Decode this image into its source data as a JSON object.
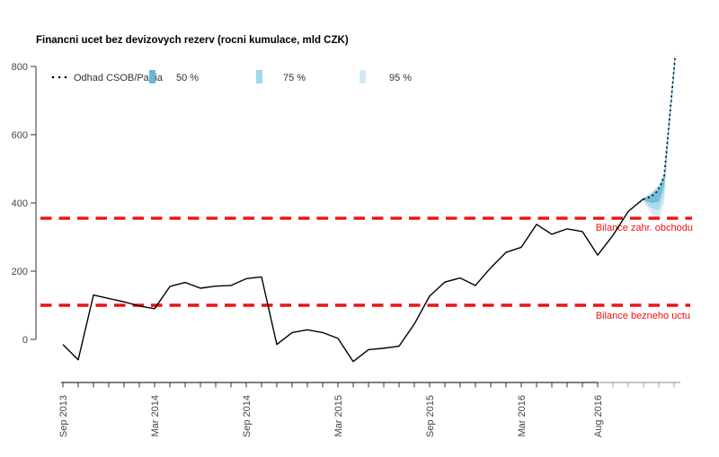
{
  "title": "Financni ucet bez devizovych rezerv (rocni kumulace, mld CZK)",
  "legend": {
    "position": "top-left",
    "estimate_label": "Odhad CSOB/Patria",
    "bands": [
      {
        "label": "50 %",
        "color": "#66b9d9"
      },
      {
        "label": "75 %",
        "color": "#a4d7e9"
      },
      {
        "label": "95 %",
        "color": "#d2eaf4"
      }
    ]
  },
  "colors": {
    "actual_line": "#000000",
    "forecast_line": "#000000",
    "reference_line": "#ee1111",
    "axis": "#333333",
    "axis_forecast_segment": "#a0a0a0",
    "background": "#ffffff"
  },
  "reference_lines": [
    {
      "value": 355,
      "label": "Bilance zahr. obchodu"
    },
    {
      "value": 100,
      "label": "Bilance bezneho uctu"
    }
  ],
  "chart_data": {
    "type": "line",
    "title": "Financni ucet bez devizovych rezerv (rocni kumulace, mld CZK)",
    "ylabel": "",
    "xlabel": "",
    "ylim": [
      -100,
      850
    ],
    "grid": false,
    "yticks": [
      0,
      200,
      400,
      600,
      800
    ],
    "xticks": {
      "indices": [
        0,
        6,
        12,
        18,
        24,
        30,
        35
      ],
      "labels": [
        "Sep 2013",
        "Mar 2014",
        "Sep 2014",
        "Mar 2015",
        "Sep 2015",
        "Mar 2016",
        "Aug 2016"
      ]
    },
    "x": [
      "Sep 2013",
      "Oct 2013",
      "Nov 2013",
      "Dec 2013",
      "Jan 2014",
      "Feb 2014",
      "Mar 2014",
      "Apr 2014",
      "May 2014",
      "Jun 2014",
      "Jul 2014",
      "Aug 2014",
      "Sep 2014",
      "Oct 2014",
      "Nov 2014",
      "Dec 2014",
      "Jan 2015",
      "Feb 2015",
      "Mar 2015",
      "Apr 2015",
      "May 2015",
      "Jun 2015",
      "Jul 2015",
      "Aug 2015",
      "Sep 2015",
      "Oct 2015",
      "Nov 2015",
      "Dec 2015",
      "Jan 2016",
      "Feb 2016",
      "Mar 2016",
      "Apr 2016",
      "May 2016",
      "Jun 2016",
      "Jul 2016",
      "Aug 2016",
      "Sep 2016",
      "Oct 2016",
      "Nov 2016"
    ],
    "series": [
      {
        "name": "Financni ucet bez devizovych rezerv (skutecnost)",
        "values": [
          -15,
          -60,
          130,
          120,
          110,
          98,
          90,
          155,
          167,
          150,
          156,
          158,
          178,
          183,
          -15,
          20,
          28,
          20,
          3,
          -65,
          -30,
          -26,
          -20,
          45,
          127,
          168,
          180,
          158,
          210,
          255,
          270,
          337,
          308,
          324,
          316,
          247,
          305,
          375,
          412
        ]
      }
    ],
    "forecast": {
      "name": "Odhad CSOB/Patria",
      "months": [
        "Nov 2016",
        "Dec 2016",
        "Jan 2017"
      ],
      "x_index": [
        38.0,
        38.47,
        38.8,
        39.1,
        39.35,
        39.7,
        40.06
      ],
      "values": [
        411,
        418,
        429,
        450,
        479,
        647,
        824
      ]
    },
    "uncertainty_bands": {
      "x_index": [
        38.0,
        38.5,
        39.0,
        39.35,
        39.7,
        40.06
      ],
      "p95": {
        "lo": [
          405,
          368,
          350,
          400,
          610,
          790
        ],
        "hi": [
          414,
          432,
          455,
          485,
          670,
          845
        ]
      },
      "p75": {
        "lo": [
          407,
          385,
          378,
          428,
          622,
          801
        ],
        "hi": [
          413,
          428,
          447,
          483,
          662,
          838
        ]
      },
      "p50": {
        "lo": [
          409,
          400,
          403,
          450,
          634,
          812
        ],
        "hi": [
          412,
          424,
          440,
          481,
          656,
          832
        ]
      }
    },
    "forecast_axis_note": "axis segment after Aug 2016 drawn in gray (forecast horizon)"
  }
}
